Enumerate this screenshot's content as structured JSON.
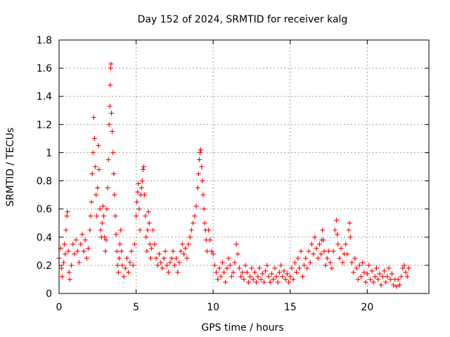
{
  "chart_data": {
    "type": "scatter",
    "title": "Day 152 of 2024, SRMTID for receiver kalg",
    "xlabel": "GPS time / hours",
    "ylabel": "SRMTID / TECUs",
    "xlim": [
      0,
      24
    ],
    "ylim": [
      0,
      1.8
    ],
    "x_ticks": [
      0,
      5,
      10,
      15,
      20
    ],
    "x_tick_labels": [
      "0",
      "5",
      "10",
      "15",
      "20"
    ],
    "y_ticks": [
      0,
      0.2,
      0.4,
      0.6,
      0.8,
      1.0,
      1.2,
      1.4,
      1.6,
      1.8
    ],
    "y_tick_labels": [
      "0",
      "0.2",
      "0.4",
      "0.6",
      "0.8",
      "1",
      "1.2",
      "1.4",
      "1.6",
      "1.8"
    ],
    "grid": true,
    "marker": "+",
    "series": [
      {
        "name": "SRMTID",
        "color": "#ff0000",
        "points": [
          [
            0.0,
            0.25
          ],
          [
            0.1,
            0.32
          ],
          [
            0.15,
            0.18
          ],
          [
            0.2,
            0.12
          ],
          [
            0.3,
            0.22
          ],
          [
            0.35,
            0.35
          ],
          [
            0.4,
            0.28
          ],
          [
            0.45,
            0.45
          ],
          [
            0.5,
            0.55
          ],
          [
            0.55,
            0.58
          ],
          [
            0.6,
            0.3
          ],
          [
            0.65,
            0.15
          ],
          [
            0.7,
            0.1
          ],
          [
            0.8,
            0.2
          ],
          [
            0.9,
            0.35
          ],
          [
            1.0,
            0.28
          ],
          [
            1.1,
            0.38
          ],
          [
            1.2,
            0.3
          ],
          [
            1.3,
            0.22
          ],
          [
            1.4,
            0.35
          ],
          [
            1.5,
            0.42
          ],
          [
            1.6,
            0.3
          ],
          [
            1.7,
            0.38
          ],
          [
            1.8,
            0.25
          ],
          [
            1.9,
            0.32
          ],
          [
            2.0,
            0.45
          ],
          [
            2.05,
            0.55
          ],
          [
            2.1,
            0.65
          ],
          [
            2.15,
            0.85
          ],
          [
            2.2,
            1.0
          ],
          [
            2.25,
            1.25
          ],
          [
            2.3,
            1.1
          ],
          [
            2.35,
            0.9
          ],
          [
            2.4,
            0.7
          ],
          [
            2.45,
            0.55
          ],
          [
            2.5,
            0.75
          ],
          [
            2.55,
            1.05
          ],
          [
            2.6,
            0.88
          ],
          [
            2.65,
            0.6
          ],
          [
            2.7,
            0.45
          ],
          [
            2.75,
            0.4
          ],
          [
            2.8,
            0.5
          ],
          [
            2.85,
            0.62
          ],
          [
            2.9,
            0.55
          ],
          [
            2.95,
            0.4
          ],
          [
            3.0,
            0.3
          ],
          [
            3.05,
            0.38
          ],
          [
            3.1,
            0.6
          ],
          [
            3.15,
            0.75
          ],
          [
            3.2,
            0.95
          ],
          [
            3.25,
            1.2
          ],
          [
            3.3,
            1.33
          ],
          [
            3.32,
            1.48
          ],
          [
            3.35,
            1.6
          ],
          [
            3.37,
            1.63
          ],
          [
            3.4,
            1.28
          ],
          [
            3.45,
            1.15
          ],
          [
            3.5,
            1.0
          ],
          [
            3.55,
            0.85
          ],
          [
            3.6,
            0.7
          ],
          [
            3.65,
            0.55
          ],
          [
            3.7,
            0.42
          ],
          [
            3.75,
            0.3
          ],
          [
            3.8,
            0.2
          ],
          [
            3.85,
            0.15
          ],
          [
            3.9,
            0.25
          ],
          [
            3.95,
            0.35
          ],
          [
            4.0,
            0.45
          ],
          [
            4.05,
            0.3
          ],
          [
            4.1,
            0.2
          ],
          [
            4.2,
            0.12
          ],
          [
            4.3,
            0.18
          ],
          [
            4.4,
            0.25
          ],
          [
            4.5,
            0.15
          ],
          [
            4.6,
            0.22
          ],
          [
            4.7,
            0.3
          ],
          [
            4.8,
            0.2
          ],
          [
            4.9,
            0.35
          ],
          [
            5.0,
            0.55
          ],
          [
            5.05,
            0.65
          ],
          [
            5.1,
            0.72
          ],
          [
            5.15,
            0.78
          ],
          [
            5.2,
            0.6
          ],
          [
            5.25,
            0.45
          ],
          [
            5.3,
            0.7
          ],
          [
            5.35,
            0.75
          ],
          [
            5.4,
            0.8
          ],
          [
            5.45,
            0.88
          ],
          [
            5.5,
            0.9
          ],
          [
            5.55,
            0.7
          ],
          [
            5.6,
            0.55
          ],
          [
            5.65,
            0.4
          ],
          [
            5.7,
            0.3
          ],
          [
            5.75,
            0.45
          ],
          [
            5.8,
            0.58
          ],
          [
            5.85,
            0.5
          ],
          [
            5.9,
            0.35
          ],
          [
            5.95,
            0.25
          ],
          [
            6.0,
            0.32
          ],
          [
            6.1,
            0.45
          ],
          [
            6.2,
            0.35
          ],
          [
            6.3,
            0.25
          ],
          [
            6.4,
            0.2
          ],
          [
            6.5,
            0.28
          ],
          [
            6.6,
            0.22
          ],
          [
            6.7,
            0.18
          ],
          [
            6.8,
            0.25
          ],
          [
            6.9,
            0.3
          ],
          [
            7.0,
            0.2
          ],
          [
            7.1,
            0.15
          ],
          [
            7.2,
            0.22
          ],
          [
            7.3,
            0.25
          ],
          [
            7.4,
            0.3
          ],
          [
            7.5,
            0.2
          ],
          [
            7.6,
            0.25
          ],
          [
            7.7,
            0.15
          ],
          [
            7.8,
            0.22
          ],
          [
            7.9,
            0.3
          ],
          [
            8.0,
            0.35
          ],
          [
            8.1,
            0.28
          ],
          [
            8.2,
            0.32
          ],
          [
            8.3,
            0.25
          ],
          [
            8.4,
            0.35
          ],
          [
            8.5,
            0.4
          ],
          [
            8.6,
            0.45
          ],
          [
            8.7,
            0.5
          ],
          [
            8.8,
            0.55
          ],
          [
            8.9,
            0.62
          ],
          [
            9.0,
            0.75
          ],
          [
            9.05,
            0.85
          ],
          [
            9.1,
            0.95
          ],
          [
            9.15,
            1.0
          ],
          [
            9.2,
            1.02
          ],
          [
            9.25,
            0.9
          ],
          [
            9.3,
            0.8
          ],
          [
            9.35,
            0.7
          ],
          [
            9.4,
            0.6
          ],
          [
            9.45,
            0.5
          ],
          [
            9.5,
            0.45
          ],
          [
            9.55,
            0.38
          ],
          [
            9.6,
            0.3
          ],
          [
            9.7,
            0.45
          ],
          [
            9.8,
            0.38
          ],
          [
            9.9,
            0.3
          ],
          [
            10.0,
            0.28
          ],
          [
            10.1,
            0.2
          ],
          [
            10.2,
            0.15
          ],
          [
            10.3,
            0.1
          ],
          [
            10.4,
            0.18
          ],
          [
            10.5,
            0.12
          ],
          [
            10.6,
            0.22
          ],
          [
            10.7,
            0.15
          ],
          [
            10.8,
            0.08
          ],
          [
            10.9,
            0.18
          ],
          [
            11.0,
            0.25
          ],
          [
            11.1,
            0.2
          ],
          [
            11.2,
            0.12
          ],
          [
            11.3,
            0.15
          ],
          [
            11.4,
            0.22
          ],
          [
            11.5,
            0.35
          ],
          [
            11.6,
            0.28
          ],
          [
            11.7,
            0.18
          ],
          [
            11.8,
            0.12
          ],
          [
            11.9,
            0.15
          ],
          [
            12.0,
            0.1
          ],
          [
            12.1,
            0.2
          ],
          [
            12.2,
            0.15
          ],
          [
            12.3,
            0.08
          ],
          [
            12.4,
            0.12
          ],
          [
            12.5,
            0.18
          ],
          [
            12.6,
            0.1
          ],
          [
            12.7,
            0.15
          ],
          [
            12.8,
            0.08
          ],
          [
            12.9,
            0.12
          ],
          [
            13.0,
            0.18
          ],
          [
            13.1,
            0.1
          ],
          [
            13.2,
            0.14
          ],
          [
            13.3,
            0.08
          ],
          [
            13.4,
            0.16
          ],
          [
            13.5,
            0.2
          ],
          [
            13.6,
            0.12
          ],
          [
            13.7,
            0.08
          ],
          [
            13.8,
            0.14
          ],
          [
            13.9,
            0.1
          ],
          [
            14.0,
            0.18
          ],
          [
            14.1,
            0.12
          ],
          [
            14.2,
            0.08
          ],
          [
            14.3,
            0.15
          ],
          [
            14.4,
            0.2
          ],
          [
            14.5,
            0.12
          ],
          [
            14.6,
            0.16
          ],
          [
            14.7,
            0.1
          ],
          [
            14.8,
            0.14
          ],
          [
            14.9,
            0.08
          ],
          [
            15.0,
            0.12
          ],
          [
            15.1,
            0.18
          ],
          [
            15.2,
            0.1
          ],
          [
            15.3,
            0.22
          ],
          [
            15.4,
            0.15
          ],
          [
            15.5,
            0.25
          ],
          [
            15.6,
            0.18
          ],
          [
            15.7,
            0.3
          ],
          [
            15.8,
            0.12
          ],
          [
            15.9,
            0.2
          ],
          [
            16.0,
            0.25
          ],
          [
            16.1,
            0.18
          ],
          [
            16.2,
            0.3
          ],
          [
            16.3,
            0.22
          ],
          [
            16.4,
            0.35
          ],
          [
            16.5,
            0.28
          ],
          [
            16.6,
            0.4
          ],
          [
            16.7,
            0.32
          ],
          [
            16.8,
            0.25
          ],
          [
            16.9,
            0.35
          ],
          [
            17.0,
            0.28
          ],
          [
            17.05,
            0.38
          ],
          [
            17.1,
            0.45
          ],
          [
            17.15,
            0.38
          ],
          [
            17.2,
            0.3
          ],
          [
            17.3,
            0.2
          ],
          [
            17.4,
            0.25
          ],
          [
            17.5,
            0.3
          ],
          [
            17.6,
            0.22
          ],
          [
            17.7,
            0.18
          ],
          [
            17.8,
            0.3
          ],
          [
            17.9,
            0.45
          ],
          [
            18.0,
            0.52
          ],
          [
            18.05,
            0.42
          ],
          [
            18.1,
            0.35
          ],
          [
            18.2,
            0.25
          ],
          [
            18.3,
            0.32
          ],
          [
            18.4,
            0.22
          ],
          [
            18.5,
            0.28
          ],
          [
            18.6,
            0.35
          ],
          [
            18.7,
            0.28
          ],
          [
            18.8,
            0.45
          ],
          [
            18.85,
            0.5
          ],
          [
            18.9,
            0.4
          ],
          [
            19.0,
            0.22
          ],
          [
            19.1,
            0.15
          ],
          [
            19.2,
            0.25
          ],
          [
            19.3,
            0.18
          ],
          [
            19.4,
            0.1
          ],
          [
            19.5,
            0.2
          ],
          [
            19.6,
            0.12
          ],
          [
            19.7,
            0.22
          ],
          [
            19.8,
            0.15
          ],
          [
            19.9,
            0.08
          ],
          [
            20.0,
            0.14
          ],
          [
            20.1,
            0.2
          ],
          [
            20.2,
            0.1
          ],
          [
            20.3,
            0.16
          ],
          [
            20.4,
            0.08
          ],
          [
            20.5,
            0.12
          ],
          [
            20.6,
            0.18
          ],
          [
            20.7,
            0.1
          ],
          [
            20.8,
            0.14
          ],
          [
            20.9,
            0.06
          ],
          [
            21.0,
            0.12
          ],
          [
            21.1,
            0.16
          ],
          [
            21.2,
            0.08
          ],
          [
            21.3,
            0.12
          ],
          [
            21.4,
            0.18
          ],
          [
            21.5,
            0.1
          ],
          [
            21.6,
            0.14
          ],
          [
            21.7,
            0.06
          ],
          [
            21.8,
            0.1
          ],
          [
            21.9,
            0.05
          ],
          [
            22.0,
            0.1
          ],
          [
            22.1,
            0.06
          ],
          [
            22.2,
            0.12
          ],
          [
            22.3,
            0.18
          ],
          [
            22.4,
            0.2
          ],
          [
            22.5,
            0.15
          ],
          [
            22.6,
            0.12
          ],
          [
            22.7,
            0.18
          ]
        ]
      }
    ]
  }
}
